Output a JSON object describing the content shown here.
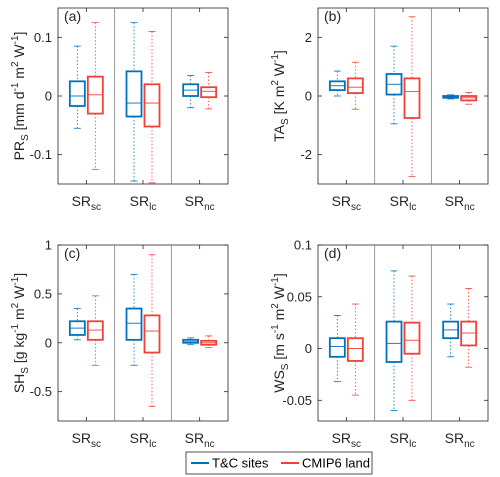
{
  "colors": {
    "tc": "#0072BD",
    "cmip": "#EF4136",
    "axis": "#262626",
    "divider": "#808080"
  },
  "legend": {
    "tc_label": "T&C sites",
    "cmip_label": "CMIP6 land"
  },
  "chart_data": [
    {
      "type": "boxplot",
      "panel_label": "(a)",
      "ylabel_parts": {
        "main": "PR",
        "sub": "S",
        "unit_before": " [mm d",
        "exp1": "-1",
        "mid1": " m",
        "exp2": "2",
        "mid2": " W",
        "exp3": "-1",
        "close": "]"
      },
      "ylim": [
        -0.15,
        0.15
      ],
      "yticks": [
        -0.1,
        0,
        0.1
      ],
      "ytick_labels": [
        "-0.1",
        "0",
        "0.1"
      ],
      "categories": [
        {
          "main": "SR",
          "sub": "sc"
        },
        {
          "main": "SR",
          "sub": "lc"
        },
        {
          "main": "SR",
          "sub": "nc"
        }
      ],
      "series": [
        {
          "name": "T&C sites",
          "boxes": [
            {
              "wlo": -0.055,
              "q1": -0.017,
              "med": 0.0,
              "q3": 0.025,
              "whi": 0.085
            },
            {
              "wlo": -0.145,
              "q1": -0.035,
              "med": -0.012,
              "q3": 0.042,
              "whi": 0.125
            },
            {
              "wlo": -0.02,
              "q1": 0.0,
              "med": 0.01,
              "q3": 0.02,
              "whi": 0.035
            }
          ]
        },
        {
          "name": "CMIP6 land",
          "boxes": [
            {
              "wlo": -0.125,
              "q1": -0.03,
              "med": 0.002,
              "q3": 0.033,
              "whi": 0.125
            },
            {
              "wlo": -0.148,
              "q1": -0.052,
              "med": -0.012,
              "q3": 0.02,
              "whi": 0.11
            },
            {
              "wlo": -0.022,
              "q1": -0.002,
              "med": 0.008,
              "q3": 0.015,
              "whi": 0.04
            }
          ]
        }
      ]
    },
    {
      "type": "boxplot",
      "panel_label": "(b)",
      "ylabel_parts": {
        "main": "TA",
        "sub": "S",
        "unit_before": " [K m",
        "exp1": "2",
        "mid1": " W",
        "exp2": "-1",
        "mid2": "",
        "exp3": "",
        "close": "]"
      },
      "ylim": [
        -3,
        3
      ],
      "yticks": [
        -2,
        0,
        2
      ],
      "ytick_labels": [
        "-2",
        "0",
        "2"
      ],
      "categories": [
        {
          "main": "SR",
          "sub": "sc"
        },
        {
          "main": "SR",
          "sub": "lc"
        },
        {
          "main": "SR",
          "sub": "nc"
        }
      ],
      "series": [
        {
          "name": "T&C sites",
          "boxes": [
            {
              "wlo": 0.0,
              "q1": 0.2,
              "med": 0.35,
              "q3": 0.5,
              "whi": 0.85
            },
            {
              "wlo": -0.95,
              "q1": 0.05,
              "med": 0.4,
              "q3": 0.75,
              "whi": 1.7
            },
            {
              "wlo": -0.1,
              "q1": -0.06,
              "med": -0.03,
              "q3": 0.0,
              "whi": 0.04
            }
          ]
        },
        {
          "name": "CMIP6 land",
          "boxes": [
            {
              "wlo": -0.45,
              "q1": 0.1,
              "med": 0.3,
              "q3": 0.6,
              "whi": 1.15
            },
            {
              "wlo": -2.75,
              "q1": -0.75,
              "med": 0.15,
              "q3": 0.6,
              "whi": 2.7
            },
            {
              "wlo": -0.28,
              "q1": -0.15,
              "med": -0.06,
              "q3": 0.0,
              "whi": 0.12
            }
          ]
        }
      ]
    },
    {
      "type": "boxplot",
      "panel_label": "(c)",
      "ylabel_parts": {
        "main": "SH",
        "sub": "S",
        "unit_before": " [g kg",
        "exp1": "-1",
        "mid1": " m",
        "exp2": "2",
        "mid2": " W",
        "exp3": "-1",
        "close": "]"
      },
      "ylim": [
        -0.8,
        1.0
      ],
      "yticks": [
        -0.5,
        0,
        0.5,
        1
      ],
      "ytick_labels": [
        "-0.5",
        "0",
        "0.5",
        "1"
      ],
      "categories": [
        {
          "main": "SR",
          "sub": "sc"
        },
        {
          "main": "SR",
          "sub": "lc"
        },
        {
          "main": "SR",
          "sub": "nc"
        }
      ],
      "series": [
        {
          "name": "T&C sites",
          "boxes": [
            {
              "wlo": 0.03,
              "q1": 0.08,
              "med": 0.15,
              "q3": 0.22,
              "whi": 0.35
            },
            {
              "wlo": -0.23,
              "q1": 0.03,
              "med": 0.2,
              "q3": 0.35,
              "whi": 0.7
            },
            {
              "wlo": -0.02,
              "q1": 0.0,
              "med": 0.01,
              "q3": 0.03,
              "whi": 0.05
            }
          ]
        },
        {
          "name": "CMIP6 land",
          "boxes": [
            {
              "wlo": -0.23,
              "q1": 0.03,
              "med": 0.13,
              "q3": 0.22,
              "whi": 0.48
            },
            {
              "wlo": -0.65,
              "q1": -0.1,
              "med": 0.12,
              "q3": 0.28,
              "whi": 0.9
            },
            {
              "wlo": -0.05,
              "q1": -0.02,
              "med": 0.0,
              "q3": 0.02,
              "whi": 0.07
            }
          ]
        }
      ]
    },
    {
      "type": "boxplot",
      "panel_label": "(d)",
      "ylabel_parts": {
        "main": "WS",
        "sub": "S",
        "unit_before": " [m s",
        "exp1": "-1",
        "mid1": " m",
        "exp2": "2",
        "mid2": " W",
        "exp3": "-1",
        "close": "]"
      },
      "ylim": [
        -0.07,
        0.1
      ],
      "yticks": [
        -0.05,
        0,
        0.05,
        0.1
      ],
      "ytick_labels": [
        "-0.05",
        "0",
        "0.05",
        "0.1"
      ],
      "categories": [
        {
          "main": "SR",
          "sub": "sc"
        },
        {
          "main": "SR",
          "sub": "lc"
        },
        {
          "main": "SR",
          "sub": "nc"
        }
      ],
      "series": [
        {
          "name": "T&C sites",
          "boxes": [
            {
              "wlo": -0.032,
              "q1": -0.008,
              "med": 0.002,
              "q3": 0.01,
              "whi": 0.032
            },
            {
              "wlo": -0.06,
              "q1": -0.013,
              "med": 0.005,
              "q3": 0.026,
              "whi": 0.075
            },
            {
              "wlo": -0.008,
              "q1": 0.01,
              "med": 0.018,
              "q3": 0.026,
              "whi": 0.043
            }
          ]
        },
        {
          "name": "CMIP6 land",
          "boxes": [
            {
              "wlo": -0.045,
              "q1": -0.012,
              "med": 0.0,
              "q3": 0.01,
              "whi": 0.043
            },
            {
              "wlo": -0.05,
              "q1": -0.005,
              "med": 0.008,
              "q3": 0.025,
              "whi": 0.07
            },
            {
              "wlo": -0.018,
              "q1": 0.003,
              "med": 0.015,
              "q3": 0.026,
              "whi": 0.058
            }
          ]
        }
      ]
    }
  ]
}
